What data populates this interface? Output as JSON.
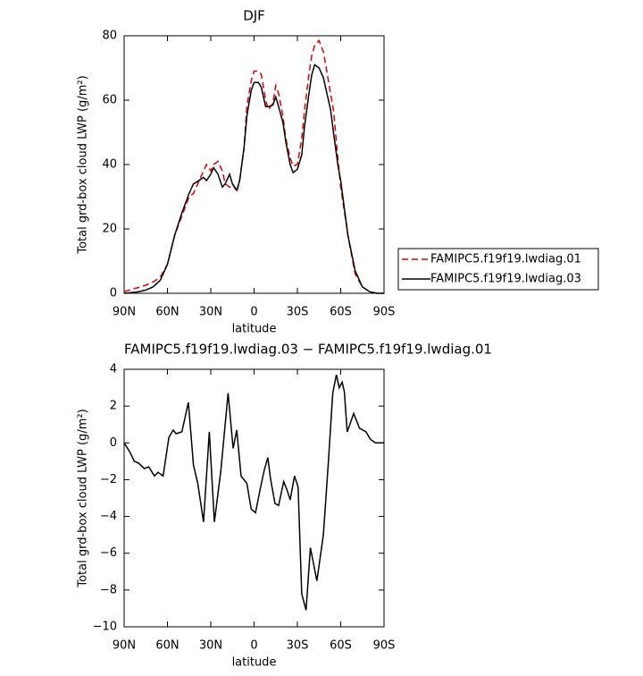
{
  "chart_data": [
    {
      "type": "line",
      "title": "DJF",
      "x_label": "latitude",
      "y_label": "Total grd-box cloud LWP (g/m²)",
      "x": [
        90,
        85,
        80,
        75,
        70,
        65,
        60,
        55,
        50,
        45,
        42,
        40,
        35,
        33,
        30,
        28,
        25,
        22,
        20,
        17,
        15,
        12,
        10,
        7,
        5,
        2,
        0,
        -3,
        -5,
        -8,
        -10,
        -13,
        -15,
        -17,
        -20,
        -22,
        -25,
        -27,
        -30,
        -33,
        -35,
        -38,
        -40,
        -42,
        -45,
        -48,
        -50,
        -53,
        -55,
        -58,
        -60,
        -65,
        -70,
        -75,
        -80,
        -85,
        -90
      ],
      "series": [
        {
          "name": "FAMIPC5.f19f19.lwdiag.01",
          "color": "#e00000",
          "dash": true,
          "values": [
            0.5,
            1.2,
            1.8,
            2.5,
            3.5,
            5,
            9,
            18,
            24,
            30,
            31,
            33,
            38,
            40,
            38,
            40,
            41,
            38,
            34,
            33,
            34,
            31.5,
            35,
            45,
            58,
            66,
            69,
            69,
            68,
            60,
            57,
            59,
            64.5,
            62,
            55,
            48,
            42,
            39.5,
            40,
            48,
            57,
            68,
            74,
            77,
            78.5,
            75,
            70,
            62,
            57,
            42,
            33,
            18,
            6,
            2,
            0.5,
            0,
            0
          ]
        },
        {
          "name": "FAMIPC5.f19f19.lwdiag.03",
          "color": "#000000",
          "dash": false,
          "values": [
            0,
            0.2,
            0.5,
            1,
            2,
            4,
            9,
            18,
            25,
            31,
            34,
            34.5,
            36,
            35,
            37,
            39,
            37,
            33,
            34,
            37,
            34,
            32,
            35,
            45,
            55,
            63,
            65.5,
            65.5,
            64,
            58,
            58,
            58.5,
            61,
            58,
            53,
            47,
            40,
            37.5,
            38.5,
            43,
            52,
            62,
            68,
            71,
            70,
            67,
            63,
            57,
            50,
            40,
            35,
            18,
            7,
            2,
            0.5,
            0,
            0
          ]
        }
      ],
      "xlim": [
        90,
        -90
      ],
      "xticks": [
        {
          "value": 90,
          "label": "90N"
        },
        {
          "value": 60,
          "label": "60N"
        },
        {
          "value": 30,
          "label": "30N"
        },
        0,
        {
          "value": -30,
          "label": "30S"
        },
        {
          "value": -60,
          "label": "60S"
        },
        {
          "value": -90,
          "label": "90S"
        }
      ],
      "ylim": [
        0,
        80
      ],
      "yticks": [
        0,
        20,
        40,
        60,
        80
      ],
      "legend": "right"
    },
    {
      "type": "line",
      "title": "FAMIPC5.f19f19.lwdiag.03 − FAMIPC5.f19f19.lwdiag.01",
      "x_label": "latitude",
      "y_label": "Total grd-box cloud LWP (g/m²)",
      "x": [
        90,
        86,
        83,
        80,
        76,
        73,
        69,
        66.5,
        63,
        59,
        56,
        54,
        50,
        45.5,
        42,
        39,
        35,
        31,
        27.5,
        23,
        18,
        14.5,
        12,
        9,
        5,
        2,
        -1,
        -4,
        -7,
        -9.5,
        -11.5,
        -14.5,
        -17,
        -20.5,
        -23,
        -25,
        -28,
        -30.5,
        -33,
        -36,
        -39,
        -43.5,
        -48,
        -51.5,
        -54.5,
        -57,
        -59,
        -61,
        -62.5,
        -64.5,
        -69,
        -73,
        -77.5,
        -80.5,
        -84,
        -90
      ],
      "values": [
        0,
        -0.5,
        -1.0,
        -1.1,
        -1.4,
        -1.3,
        -1.8,
        -1.6,
        -1.8,
        0.3,
        0.7,
        0.5,
        0.6,
        2.2,
        -1.2,
        -2.2,
        -4.3,
        0.6,
        -4.3,
        -1.5,
        2.7,
        -0.3,
        0.7,
        -1.8,
        -2.2,
        -3.6,
        -3.8,
        -2.6,
        -1.5,
        -0.8,
        -2.0,
        -3.3,
        -3.4,
        -2.1,
        -2.6,
        -3.1,
        -1.8,
        -2.4,
        -8.2,
        -9.1,
        -5.7,
        -7.5,
        -5,
        -1,
        2.7,
        3.7,
        3.0,
        3.3,
        2.8,
        0.6,
        1.6,
        0.8,
        0.6,
        0.2,
        0,
        0
      ],
      "color": "#000000",
      "xlim": [
        90,
        -90
      ],
      "xticks": [
        {
          "value": 90,
          "label": "90N"
        },
        {
          "value": 60,
          "label": "60N"
        },
        {
          "value": 30,
          "label": "30N"
        },
        0,
        {
          "value": -30,
          "label": "30S"
        },
        {
          "value": -60,
          "label": "60S"
        },
        {
          "value": -90,
          "label": "90S"
        }
      ],
      "ylim": [
        -10,
        4
      ],
      "yticks": [
        {
          "value": -10,
          "label": "−10"
        },
        {
          "value": -8,
          "label": "−8"
        },
        {
          "value": -6,
          "label": "−6"
        },
        {
          "value": -4,
          "label": "−4"
        },
        {
          "value": -2,
          "label": "−2"
        },
        0,
        2,
        4
      ]
    }
  ]
}
